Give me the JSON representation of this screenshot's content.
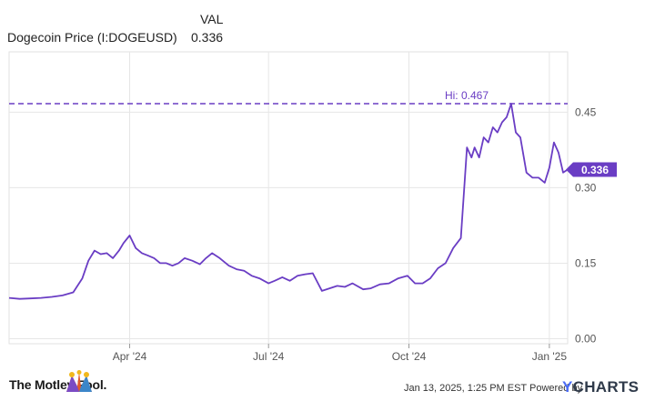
{
  "legend": {
    "header": "VAL",
    "series_name": "Dogecoin Price (I:DOGEUSD)",
    "series_value": "0.336"
  },
  "chart_data": {
    "type": "line",
    "series": [
      {
        "name": "Dogecoin Price (I:DOGEUSD)",
        "color": "#6a3dc4",
        "x": [
          "2024-01-13",
          "2024-01-20",
          "2024-01-27",
          "2024-02-03",
          "2024-02-10",
          "2024-02-17",
          "2024-02-24",
          "2024-03-01",
          "2024-03-05",
          "2024-03-09",
          "2024-03-13",
          "2024-03-17",
          "2024-03-21",
          "2024-03-25",
          "2024-03-28",
          "2024-04-01",
          "2024-04-05",
          "2024-04-09",
          "2024-04-13",
          "2024-04-17",
          "2024-04-21",
          "2024-04-25",
          "2024-04-29",
          "2024-05-03",
          "2024-05-07",
          "2024-05-12",
          "2024-05-17",
          "2024-05-21",
          "2024-05-25",
          "2024-05-30",
          "2024-06-05",
          "2024-06-10",
          "2024-06-15",
          "2024-06-20",
          "2024-06-25",
          "2024-07-01",
          "2024-07-05",
          "2024-07-10",
          "2024-07-15",
          "2024-07-20",
          "2024-07-25",
          "2024-07-30",
          "2024-08-05",
          "2024-08-10",
          "2024-08-15",
          "2024-08-20",
          "2024-08-25",
          "2024-09-01",
          "2024-09-06",
          "2024-09-12",
          "2024-09-18",
          "2024-09-24",
          "2024-09-30",
          "2024-10-05",
          "2024-10-10",
          "2024-10-15",
          "2024-10-20",
          "2024-10-25",
          "2024-10-30",
          "2024-11-04",
          "2024-11-08",
          "2024-11-11",
          "2024-11-13",
          "2024-11-16",
          "2024-11-19",
          "2024-11-22",
          "2024-11-25",
          "2024-11-28",
          "2024-12-01",
          "2024-12-04",
          "2024-12-07",
          "2024-12-10",
          "2024-12-13",
          "2024-12-17",
          "2024-12-21",
          "2024-12-25",
          "2024-12-29",
          "2025-01-01",
          "2025-01-04",
          "2025-01-07",
          "2025-01-10",
          "2025-01-13"
        ],
        "values": [
          0.081,
          0.079,
          0.08,
          0.081,
          0.083,
          0.086,
          0.092,
          0.12,
          0.155,
          0.175,
          0.168,
          0.17,
          0.16,
          0.175,
          0.19,
          0.205,
          0.18,
          0.17,
          0.165,
          0.16,
          0.15,
          0.15,
          0.145,
          0.15,
          0.16,
          0.155,
          0.148,
          0.16,
          0.17,
          0.16,
          0.145,
          0.138,
          0.135,
          0.125,
          0.12,
          0.11,
          0.115,
          0.122,
          0.115,
          0.125,
          0.128,
          0.13,
          0.095,
          0.1,
          0.105,
          0.103,
          0.11,
          0.098,
          0.1,
          0.108,
          0.11,
          0.12,
          0.125,
          0.11,
          0.11,
          0.12,
          0.14,
          0.15,
          0.18,
          0.2,
          0.38,
          0.36,
          0.38,
          0.36,
          0.4,
          0.39,
          0.42,
          0.41,
          0.43,
          0.44,
          0.467,
          0.41,
          0.4,
          0.33,
          0.32,
          0.32,
          0.31,
          0.34,
          0.39,
          0.37,
          0.33,
          0.336
        ]
      }
    ],
    "x_tick_labels": [
      "Apr '24",
      "Jul '24",
      "Oct '24",
      "Jan '25"
    ],
    "x_tick_dates": [
      "2024-04-01",
      "2024-07-01",
      "2024-10-01",
      "2025-01-01"
    ],
    "y_tick_labels": [
      "0.00",
      "0.15",
      "0.30",
      "0.45"
    ],
    "y_tick_values": [
      0,
      0.15,
      0.3,
      0.45
    ],
    "xlim": [
      "2024-01-13",
      "2025-01-13"
    ],
    "ylim": [
      -0.01,
      0.57
    ],
    "grid": true,
    "reference_line": {
      "label": "Hi: 0.467",
      "value": 0.467
    },
    "last_value_label": "0.336",
    "title": "",
    "xlabel": "",
    "ylabel": ""
  },
  "footer": {
    "brand": "The Motley Fool.",
    "powered_by": "Jan 13, 2025, 1:25 PM EST Powered by",
    "ycharts_y": "Y",
    "ycharts_rest": "CHARTS"
  }
}
